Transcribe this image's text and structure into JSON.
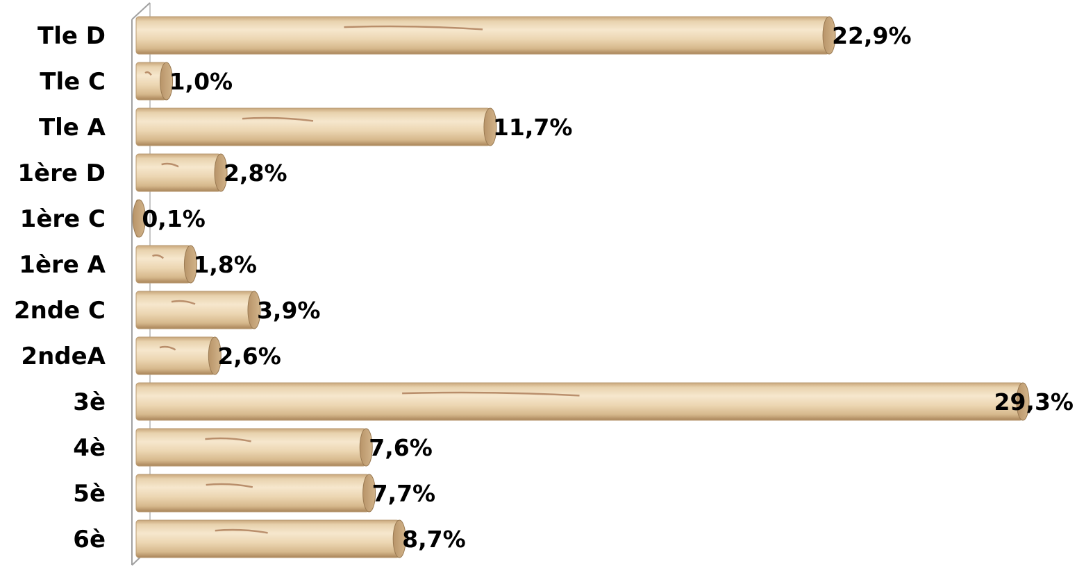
{
  "chart_data": {
    "type": "bar",
    "orientation": "horizontal",
    "style": "3d-cylinder-wood",
    "categories": [
      "Tle D",
      "Tle C",
      "Tle A",
      "1ère D",
      "1ère C",
      "1ère A",
      "2nde C",
      "2ndeA",
      "3è",
      "4è",
      "5è",
      "6è"
    ],
    "values": [
      22.9,
      1.0,
      11.7,
      2.8,
      0.1,
      1.8,
      3.9,
      2.6,
      29.3,
      7.6,
      7.7,
      8.7
    ],
    "value_labels": [
      "22,9%",
      "1,0%",
      "11,7%",
      "2,8%",
      "0,1%",
      "1,8%",
      "3,9%",
      "2,6%",
      "29,3%",
      "7,6%",
      "7,7%",
      "8,7%"
    ],
    "title": "",
    "xlabel": "",
    "ylabel": "",
    "xlim": [
      0,
      30
    ],
    "grid": false,
    "legend": "none",
    "colors": {
      "wood_light": "#f2e0c2",
      "wood_mid": "#dcbf95",
      "wood_dark": "#a6825a",
      "end_cap": "#c8a67a",
      "grain": "#8a4a22",
      "axis": "#a0a0a0"
    }
  }
}
